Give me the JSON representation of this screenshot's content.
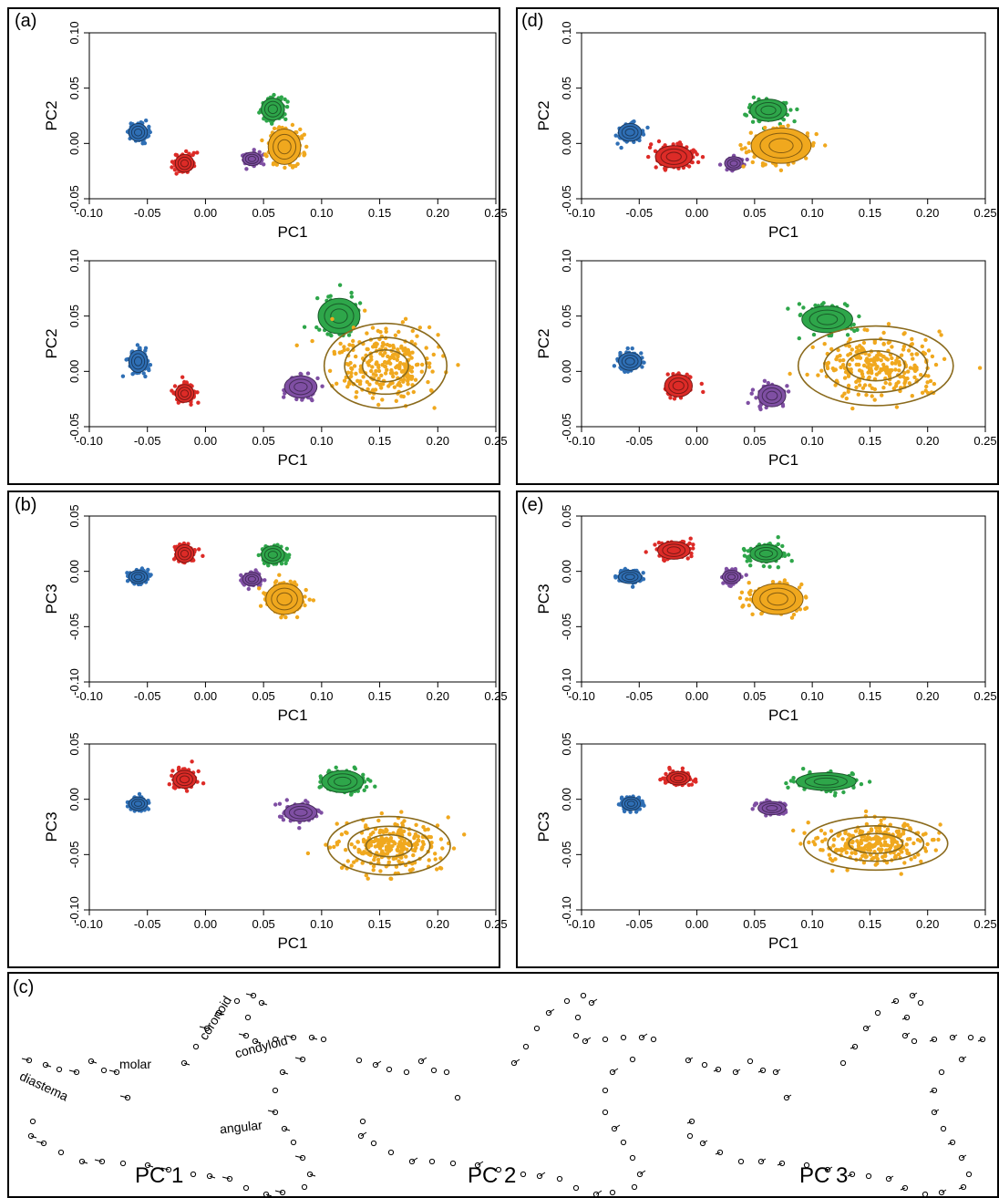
{
  "panels": [
    {
      "label": "(a)"
    },
    {
      "label": "(d)"
    },
    {
      "label": "(b)"
    },
    {
      "label": "(e)"
    },
    {
      "label": "(c)"
    }
  ],
  "colors": {
    "blue": "#2f6fb5",
    "red": "#dd2b27",
    "green": "#2ea64a",
    "purple": "#7f4fa3",
    "orange": "#f0a81e",
    "orange_ring": "#8a6a1c"
  },
  "chart_data": [
    {
      "type": "scatter",
      "panel": "(a)",
      "xlabel": "PC1",
      "ylabel": "PC2",
      "xlim": [
        -0.1,
        0.25
      ],
      "ylim": [
        -0.05,
        0.1
      ],
      "xticks": [
        "-0.10",
        "-0.05",
        "0.00",
        "0.05",
        "0.10",
        "0.15",
        "0.20",
        "0.25"
      ],
      "yticks": [
        "-0.05",
        "0.00",
        "0.05",
        "0.10"
      ],
      "clusters": [
        {
          "color": "blue",
          "x": -0.058,
          "y": 0.01,
          "sx": 0.004,
          "sy": 0.004,
          "n": 150,
          "rings": 1
        },
        {
          "color": "red",
          "x": -0.018,
          "y": -0.018,
          "sx": 0.004,
          "sy": 0.004,
          "n": 150,
          "rings": 1
        },
        {
          "color": "green",
          "x": 0.058,
          "y": 0.031,
          "sx": 0.005,
          "sy": 0.005,
          "n": 170,
          "rings": 1
        },
        {
          "color": "purple",
          "x": 0.04,
          "y": -0.014,
          "sx": 0.004,
          "sy": 0.003,
          "n": 120,
          "rings": 1
        },
        {
          "color": "orange",
          "x": 0.068,
          "y": -0.003,
          "sx": 0.007,
          "sy": 0.008,
          "n": 220,
          "rings": 1
        }
      ]
    },
    {
      "type": "scatter",
      "panel": "(a)",
      "xlabel": "PC1",
      "ylabel": "PC2",
      "xlim": [
        -0.1,
        0.25
      ],
      "ylim": [
        -0.05,
        0.1
      ],
      "xticks": [
        "-0.10",
        "-0.05",
        "0.00",
        "0.05",
        "0.10",
        "0.15",
        "0.20",
        "0.25"
      ],
      "yticks": [
        "-0.05",
        "0.00",
        "0.05",
        "0.10"
      ],
      "clusters": [
        {
          "color": "blue",
          "x": -0.058,
          "y": 0.009,
          "sx": 0.004,
          "sy": 0.005,
          "n": 150,
          "rings": 1
        },
        {
          "color": "red",
          "x": -0.018,
          "y": -0.02,
          "sx": 0.004,
          "sy": 0.004,
          "n": 150,
          "rings": 1
        },
        {
          "color": "green",
          "x": 0.115,
          "y": 0.05,
          "sx": 0.009,
          "sy": 0.008,
          "n": 170,
          "rings": 1
        },
        {
          "color": "purple",
          "x": 0.082,
          "y": -0.014,
          "sx": 0.007,
          "sy": 0.005,
          "n": 150,
          "rings": 1
        },
        {
          "color": "orange",
          "x": 0.155,
          "y": 0.005,
          "sx": 0.022,
          "sy": 0.016,
          "n": 260,
          "rings": 3
        }
      ]
    },
    {
      "type": "scatter",
      "panel": "(d)",
      "xlabel": "PC1",
      "ylabel": "PC2",
      "xlim": [
        -0.1,
        0.25
      ],
      "ylim": [
        -0.05,
        0.1
      ],
      "xticks": [
        "-0.10",
        "-0.05",
        "0.00",
        "0.05",
        "0.10",
        "0.15",
        "0.20",
        "0.25"
      ],
      "yticks": [
        "-0.05",
        "0.00",
        "0.05",
        "0.10"
      ],
      "clusters": [
        {
          "color": "blue",
          "x": -0.058,
          "y": 0.01,
          "sx": 0.005,
          "sy": 0.004,
          "n": 150,
          "rings": 1
        },
        {
          "color": "red",
          "x": -0.02,
          "y": -0.012,
          "sx": 0.008,
          "sy": 0.005,
          "n": 170,
          "rings": 1
        },
        {
          "color": "green",
          "x": 0.062,
          "y": 0.03,
          "sx": 0.008,
          "sy": 0.005,
          "n": 170,
          "rings": 1
        },
        {
          "color": "purple",
          "x": 0.032,
          "y": -0.018,
          "sx": 0.004,
          "sy": 0.003,
          "n": 120,
          "rings": 1
        },
        {
          "color": "orange",
          "x": 0.073,
          "y": -0.002,
          "sx": 0.013,
          "sy": 0.008,
          "n": 220,
          "rings": 1
        }
      ]
    },
    {
      "type": "scatter",
      "panel": "(d)",
      "xlabel": "PC1",
      "ylabel": "PC2",
      "xlim": [
        -0.1,
        0.25
      ],
      "ylim": [
        -0.05,
        0.1
      ],
      "xticks": [
        "-0.10",
        "-0.05",
        "0.00",
        "0.05",
        "0.10",
        "0.15",
        "0.20",
        "0.25"
      ],
      "yticks": [
        "-0.05",
        "0.00",
        "0.05",
        "0.10"
      ],
      "clusters": [
        {
          "color": "blue",
          "x": -0.058,
          "y": 0.009,
          "sx": 0.005,
          "sy": 0.004,
          "n": 150,
          "rings": 1
        },
        {
          "color": "red",
          "x": -0.016,
          "y": -0.013,
          "sx": 0.006,
          "sy": 0.005,
          "n": 160,
          "rings": 1
        },
        {
          "color": "green",
          "x": 0.113,
          "y": 0.047,
          "sx": 0.011,
          "sy": 0.006,
          "n": 180,
          "rings": 1
        },
        {
          "color": "purple",
          "x": 0.065,
          "y": -0.022,
          "sx": 0.006,
          "sy": 0.005,
          "n": 140,
          "rings": 1
        },
        {
          "color": "orange",
          "x": 0.155,
          "y": 0.005,
          "sx": 0.028,
          "sy": 0.015,
          "n": 260,
          "rings": 3
        }
      ]
    },
    {
      "type": "scatter",
      "panel": "(b)",
      "xlabel": "PC1",
      "ylabel": "PC3",
      "xlim": [
        -0.1,
        0.25
      ],
      "ylim": [
        -0.1,
        0.05
      ],
      "xticks": [
        "-0.10",
        "-0.05",
        "0.00",
        "0.05",
        "0.10",
        "0.15",
        "0.20",
        "0.25"
      ],
      "yticks": [
        "-0.10",
        "-0.05",
        "0.00",
        "0.05"
      ],
      "clusters": [
        {
          "color": "blue",
          "x": -0.058,
          "y": -0.005,
          "sx": 0.004,
          "sy": 0.003,
          "n": 150,
          "rings": 1
        },
        {
          "color": "red",
          "x": -0.018,
          "y": 0.016,
          "sx": 0.004,
          "sy": 0.004,
          "n": 150,
          "rings": 1
        },
        {
          "color": "green",
          "x": 0.058,
          "y": 0.015,
          "sx": 0.005,
          "sy": 0.004,
          "n": 170,
          "rings": 1
        },
        {
          "color": "purple",
          "x": 0.04,
          "y": -0.007,
          "sx": 0.004,
          "sy": 0.003,
          "n": 120,
          "rings": 1
        },
        {
          "color": "orange",
          "x": 0.068,
          "y": -0.025,
          "sx": 0.008,
          "sy": 0.007,
          "n": 220,
          "rings": 1
        }
      ]
    },
    {
      "type": "scatter",
      "panel": "(b)",
      "xlabel": "PC1",
      "ylabel": "PC3",
      "xlim": [
        -0.1,
        0.25
      ],
      "ylim": [
        -0.1,
        0.05
      ],
      "xticks": [
        "-0.10",
        "-0.05",
        "0.00",
        "0.05",
        "0.10",
        "0.15",
        "0.20",
        "0.25"
      ],
      "yticks": [
        "-0.10",
        "-0.05",
        "0.00",
        "0.05"
      ],
      "clusters": [
        {
          "color": "blue",
          "x": -0.058,
          "y": -0.004,
          "sx": 0.004,
          "sy": 0.003,
          "n": 150,
          "rings": 1
        },
        {
          "color": "red",
          "x": -0.018,
          "y": 0.018,
          "sx": 0.005,
          "sy": 0.004,
          "n": 150,
          "rings": 1
        },
        {
          "color": "green",
          "x": 0.118,
          "y": 0.016,
          "sx": 0.009,
          "sy": 0.005,
          "n": 170,
          "rings": 1
        },
        {
          "color": "purple",
          "x": 0.082,
          "y": -0.012,
          "sx": 0.007,
          "sy": 0.004,
          "n": 150,
          "rings": 1
        },
        {
          "color": "orange",
          "x": 0.158,
          "y": -0.042,
          "sx": 0.022,
          "sy": 0.011,
          "n": 260,
          "rings": 3
        }
      ]
    },
    {
      "type": "scatter",
      "panel": "(e)",
      "xlabel": "PC1",
      "ylabel": "PC3",
      "xlim": [
        -0.1,
        0.25
      ],
      "ylim": [
        -0.1,
        0.05
      ],
      "xticks": [
        "-0.10",
        "-0.05",
        "0.00",
        "0.05",
        "0.10",
        "0.15",
        "0.20",
        "0.25"
      ],
      "yticks": [
        "-0.10",
        "-0.05",
        "0.00",
        "0.05"
      ],
      "clusters": [
        {
          "color": "blue",
          "x": -0.058,
          "y": -0.005,
          "sx": 0.005,
          "sy": 0.003,
          "n": 150,
          "rings": 1
        },
        {
          "color": "red",
          "x": -0.02,
          "y": 0.019,
          "sx": 0.007,
          "sy": 0.004,
          "n": 170,
          "rings": 1
        },
        {
          "color": "green",
          "x": 0.06,
          "y": 0.016,
          "sx": 0.007,
          "sy": 0.004,
          "n": 170,
          "rings": 1
        },
        {
          "color": "purple",
          "x": 0.03,
          "y": -0.005,
          "sx": 0.004,
          "sy": 0.003,
          "n": 120,
          "rings": 1
        },
        {
          "color": "orange",
          "x": 0.07,
          "y": -0.025,
          "sx": 0.011,
          "sy": 0.007,
          "n": 220,
          "rings": 1
        }
      ]
    },
    {
      "type": "scatter",
      "panel": "(e)",
      "xlabel": "PC1",
      "ylabel": "PC3",
      "xlim": [
        -0.1,
        0.25
      ],
      "ylim": [
        -0.1,
        0.05
      ],
      "xticks": [
        "-0.10",
        "-0.05",
        "0.00",
        "0.05",
        "0.10",
        "0.15",
        "0.20",
        "0.25"
      ],
      "yticks": [
        "-0.10",
        "-0.05",
        "0.00",
        "0.05"
      ],
      "clusters": [
        {
          "color": "blue",
          "x": -0.057,
          "y": -0.004,
          "sx": 0.004,
          "sy": 0.003,
          "n": 150,
          "rings": 1
        },
        {
          "color": "red",
          "x": -0.016,
          "y": 0.019,
          "sx": 0.005,
          "sy": 0.003,
          "n": 150,
          "rings": 1
        },
        {
          "color": "green",
          "x": 0.112,
          "y": 0.016,
          "sx": 0.013,
          "sy": 0.004,
          "n": 180,
          "rings": 1
        },
        {
          "color": "purple",
          "x": 0.065,
          "y": -0.008,
          "sx": 0.006,
          "sy": 0.003,
          "n": 140,
          "rings": 1
        },
        {
          "color": "orange",
          "x": 0.155,
          "y": -0.04,
          "sx": 0.026,
          "sy": 0.01,
          "n": 260,
          "rings": 3
        }
      ]
    }
  ],
  "wireframes": {
    "titles": [
      "PC 1",
      "PC 2",
      "PC 3"
    ],
    "annotations": [
      "coronoid",
      "condyloid",
      "molar",
      "diastema",
      "angular"
    ]
  }
}
